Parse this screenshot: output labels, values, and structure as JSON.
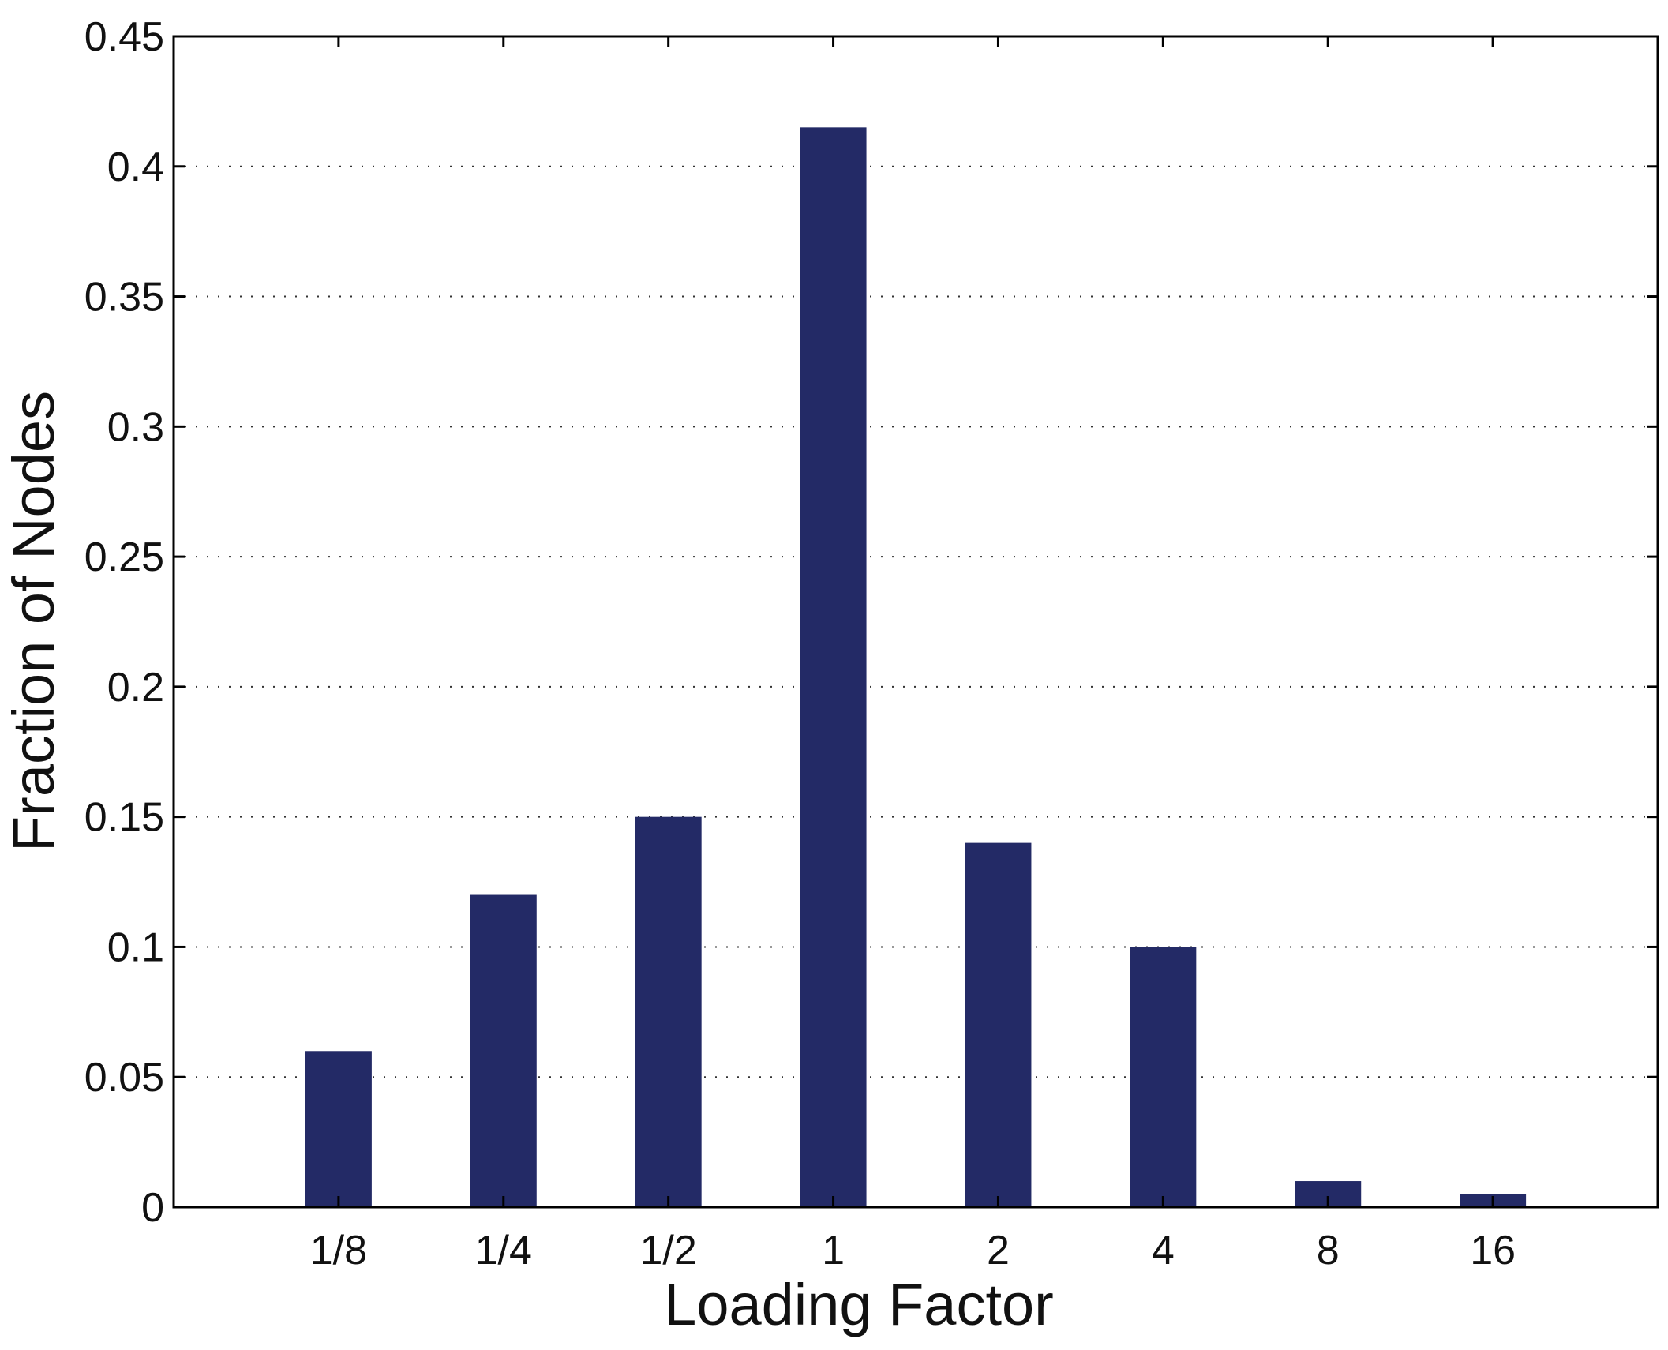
{
  "chart_data": {
    "type": "bar",
    "categories": [
      "1/8",
      "1/4",
      "1/2",
      "1",
      "2",
      "4",
      "8",
      "16"
    ],
    "values": [
      0.06,
      0.12,
      0.15,
      0.415,
      0.14,
      0.1,
      0.01,
      0.005
    ],
    "title": "",
    "xlabel": "Loading Factor",
    "ylabel": "Fraction of Nodes",
    "ylim": [
      0,
      0.45
    ],
    "yticks": [
      "0",
      "0.05",
      "0.1",
      "0.15",
      "0.2",
      "0.25",
      "0.3",
      "0.35",
      "0.4",
      "0.45"
    ],
    "grid": "horizontal dotted",
    "legend": "none",
    "colors": {
      "bar": "#232a66",
      "frame": "#000000",
      "grid": "#333333"
    }
  }
}
